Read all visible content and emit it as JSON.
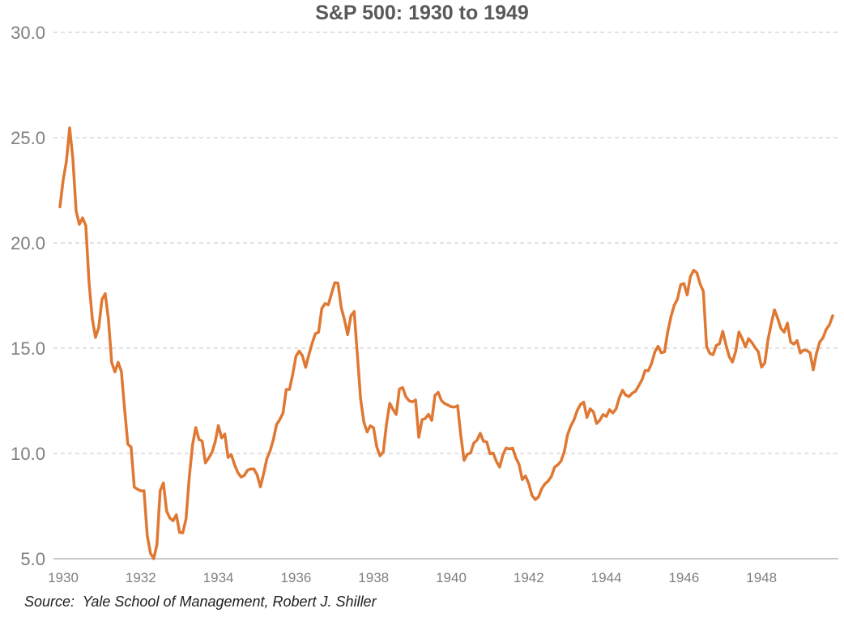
{
  "chart_data": {
    "type": "line",
    "title": "S&P 500: 1930 to 1949",
    "source": "Source:  Yale School of Management, Robert J. Shiller",
    "grid": "horizontal-dashed",
    "legend_position": "none",
    "colors": {
      "line": "#DF7832",
      "gridline": "#D9D9D9",
      "axis_line": "#C9C9C9",
      "tick_label": "#7F7F7F",
      "title": "#595959",
      "source_text": "#1F1F1F",
      "background": "#FFFFFF"
    },
    "y_axis": {
      "min": 5.0,
      "max": 30.0,
      "ticks": [
        5.0,
        10.0,
        15.0,
        20.0,
        25.0,
        30.0
      ],
      "tick_labels": [
        "5.0",
        "10.0",
        "15.0",
        "20.0",
        "25.0",
        "30.0"
      ]
    },
    "x_axis": {
      "start_year": 1930,
      "end_year": 1949,
      "frequency": "monthly",
      "tick_years": [
        1930,
        1932,
        1934,
        1936,
        1938,
        1940,
        1942,
        1944,
        1946,
        1948
      ],
      "tick_labels": [
        "1930",
        "1932",
        "1934",
        "1936",
        "1938",
        "1940",
        "1942",
        "1944",
        "1946",
        "1948"
      ]
    },
    "series": [
      {
        "name": "S&P 500 (monthly)",
        "values": [
          21.71,
          22.99,
          23.87,
          25.46,
          24.0,
          21.52,
          20.88,
          21.19,
          20.81,
          18.13,
          16.41,
          15.51,
          15.98,
          17.31,
          17.59,
          16.37,
          14.33,
          13.87,
          14.33,
          13.9,
          12.11,
          10.44,
          10.3,
          8.4,
          8.3,
          8.22,
          8.23,
          6.11,
          5.26,
          4.77,
          5.67,
          8.23,
          8.6,
          7.26,
          6.93,
          6.8,
          7.09,
          6.25,
          6.23,
          6.89,
          8.87,
          10.39,
          11.23,
          10.67,
          10.58,
          9.55,
          9.78,
          10.04,
          10.54,
          11.32,
          10.74,
          10.92,
          9.81,
          9.94,
          9.47,
          9.1,
          8.88,
          8.95,
          9.2,
          9.26,
          9.26,
          8.98,
          8.41,
          9.04,
          9.75,
          10.12,
          10.65,
          11.37,
          11.61,
          11.92,
          13.04,
          13.04,
          13.76,
          14.62,
          14.86,
          14.64,
          14.09,
          14.69,
          15.23,
          15.69,
          15.76,
          16.89,
          17.12,
          17.06,
          17.59,
          18.11,
          18.09,
          16.93,
          16.35,
          15.64,
          16.54,
          16.74,
          14.67,
          12.58,
          11.49,
          11.02,
          11.31,
          11.22,
          10.31,
          9.89,
          10.06,
          11.39,
          12.38,
          12.1,
          11.85,
          13.06,
          13.13,
          12.69,
          12.5,
          12.45,
          12.54,
          10.77,
          11.6,
          11.66,
          11.86,
          11.57,
          12.76,
          12.9,
          12.51,
          12.37,
          12.3,
          12.22,
          12.2,
          12.27,
          10.84,
          9.67,
          9.96,
          10.02,
          10.49,
          10.63,
          10.96,
          10.58,
          10.55,
          9.98,
          10.02,
          9.62,
          9.35,
          9.93,
          10.26,
          10.21,
          10.25,
          9.8,
          9.48,
          8.76,
          8.93,
          8.57,
          8.01,
          7.81,
          7.93,
          8.32,
          8.55,
          8.69,
          8.91,
          9.35,
          9.46,
          9.64,
          10.09,
          10.89,
          11.3,
          11.6,
          12.04,
          12.33,
          12.44,
          11.71,
          12.12,
          11.97,
          11.42,
          11.58,
          11.85,
          11.76,
          12.08,
          11.92,
          12.11,
          12.64,
          13.0,
          12.77,
          12.7,
          12.86,
          12.95,
          13.21,
          13.49,
          13.94,
          13.93,
          14.28,
          14.82,
          15.09,
          14.78,
          14.83,
          15.79,
          16.5,
          17.04,
          17.33,
          18.02,
          18.07,
          17.53,
          18.4,
          18.7,
          18.58,
          18.05,
          17.7,
          15.09,
          14.75,
          14.69,
          15.13,
          15.21,
          15.8,
          15.16,
          14.6,
          14.34,
          14.84,
          15.77,
          15.46,
          15.06,
          15.45,
          15.27,
          15.03,
          14.83,
          14.1,
          14.3,
          15.4,
          16.15,
          16.82,
          16.42,
          15.94,
          15.76,
          16.19,
          15.29,
          15.19,
          15.36,
          14.77,
          14.91,
          14.89,
          14.78,
          13.97,
          14.76,
          15.29,
          15.49,
          15.89,
          16.11,
          16.54
        ]
      }
    ]
  }
}
